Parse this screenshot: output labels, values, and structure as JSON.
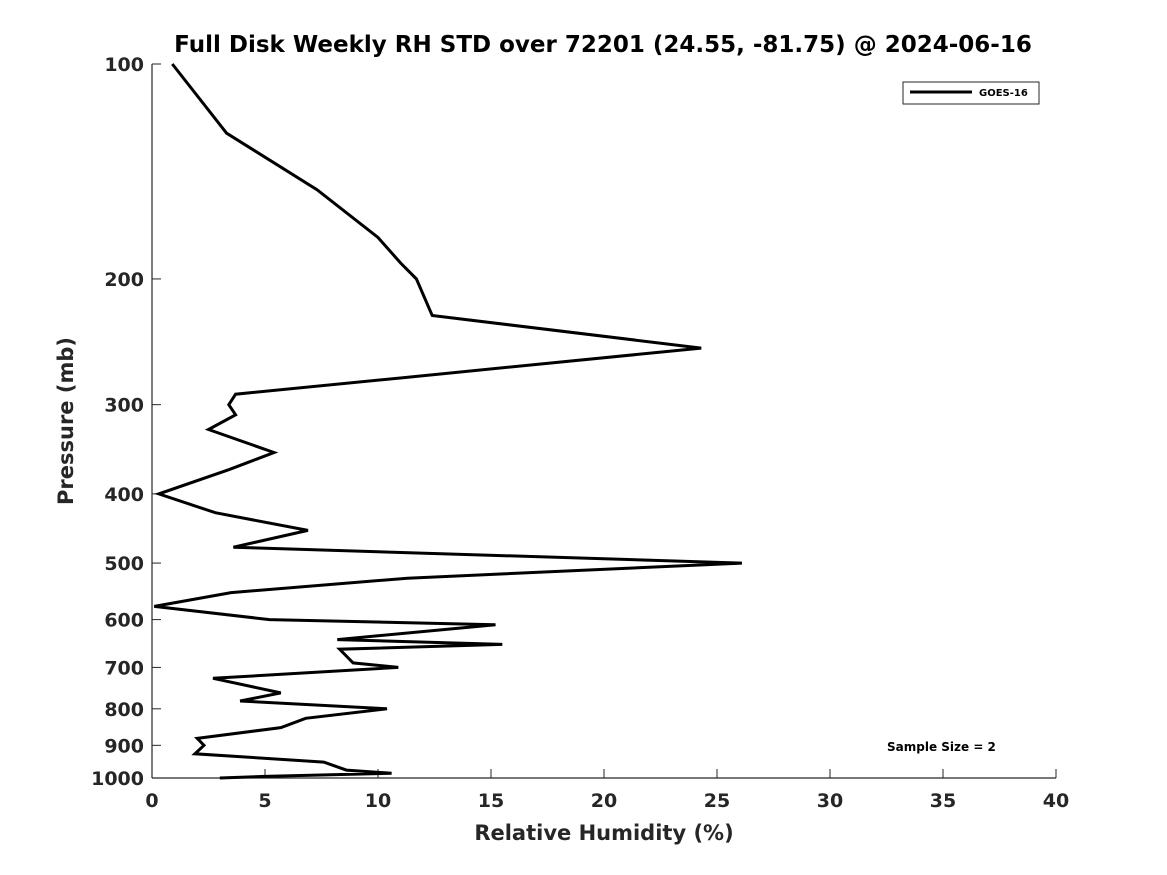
{
  "chart_data": {
    "type": "line",
    "title": "Full Disk Weekly RH STD over 72201 (24.55, -81.75) @ 2024-06-16",
    "xlabel": "Relative Humidity (%)",
    "ylabel": "Pressure (mb)",
    "xlim": [
      0,
      40
    ],
    "ylim": [
      100,
      1000
    ],
    "yscale": "log",
    "yreversed": true,
    "grid": false,
    "legend_position": "top-right",
    "xticks": [
      0,
      5,
      10,
      15,
      20,
      25,
      30,
      35,
      40
    ],
    "xtick_labels": [
      "0",
      "5",
      "10",
      "15",
      "20",
      "25",
      "30",
      "35",
      "40"
    ],
    "yticks": [
      100,
      200,
      300,
      400,
      500,
      600,
      700,
      800,
      900,
      1000
    ],
    "ytick_labels": [
      "100",
      "200",
      "300",
      "400",
      "500",
      "600",
      "700",
      "800",
      "900",
      "1000"
    ],
    "annotation": "Sample Size = 2",
    "series": [
      {
        "name": "GOES-16",
        "color": "#000000",
        "points": [
          [
            0.9,
            100
          ],
          [
            3.3,
            125
          ],
          [
            7.3,
            150
          ],
          [
            10.0,
            175
          ],
          [
            11.0,
            190
          ],
          [
            11.7,
            200
          ],
          [
            12.4,
            225
          ],
          [
            24.3,
            250
          ],
          [
            11.1,
            275
          ],
          [
            3.7,
            290
          ],
          [
            3.4,
            300
          ],
          [
            3.7,
            310
          ],
          [
            2.5,
            325
          ],
          [
            5.4,
            350
          ],
          [
            3.4,
            370
          ],
          [
            0.3,
            400
          ],
          [
            2.8,
            425
          ],
          [
            6.9,
            450
          ],
          [
            3.6,
            475
          ],
          [
            26.1,
            500
          ],
          [
            11.3,
            525
          ],
          [
            3.5,
            550
          ],
          [
            0.1,
            575
          ],
          [
            5.2,
            600
          ],
          [
            15.2,
            610
          ],
          [
            8.2,
            640
          ],
          [
            15.5,
            650
          ],
          [
            8.3,
            660
          ],
          [
            8.9,
            690
          ],
          [
            10.9,
            700
          ],
          [
            2.7,
            725
          ],
          [
            5.7,
            760
          ],
          [
            3.9,
            780
          ],
          [
            10.4,
            800
          ],
          [
            6.8,
            825
          ],
          [
            5.7,
            850
          ],
          [
            2.0,
            880
          ],
          [
            2.3,
            900
          ],
          [
            1.9,
            925
          ],
          [
            7.6,
            950
          ],
          [
            8.6,
            975
          ],
          [
            10.6,
            985
          ],
          [
            5.0,
            995
          ],
          [
            3.0,
            1000
          ]
        ]
      }
    ]
  }
}
